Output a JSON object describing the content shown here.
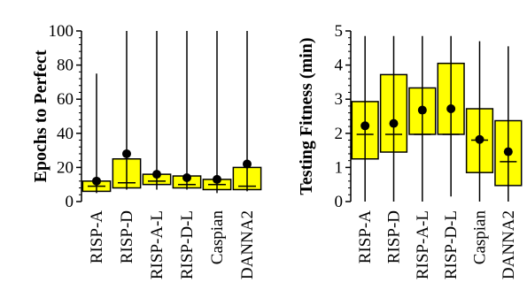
{
  "chart_data": [
    {
      "type": "box",
      "ylabel": "Epochs to Perfect",
      "ylim": [
        0,
        100
      ],
      "yticks": [
        0,
        20,
        40,
        60,
        80,
        100
      ],
      "categories": [
        "RISP-A",
        "RISP-D",
        "RISP-A-L",
        "RISP-D-L",
        "Caspian",
        "DANNA2"
      ],
      "boxes": [
        {
          "min": 5,
          "q1": 6,
          "median": 9,
          "q3": 12,
          "max": 75,
          "mean": 12
        },
        {
          "min": 7,
          "q1": 8,
          "median": 11,
          "q3": 25,
          "max": 100,
          "mean": 28
        },
        {
          "min": 7,
          "q1": 10,
          "median": 12,
          "q3": 16,
          "max": 100,
          "mean": 16
        },
        {
          "min": 7,
          "q1": 8,
          "median": 10,
          "q3": 15,
          "max": 100,
          "mean": 14
        },
        {
          "min": 5,
          "q1": 7,
          "median": 10,
          "q3": 13,
          "max": 100,
          "mean": 13
        },
        {
          "min": 6,
          "q1": 7,
          "median": 9,
          "q3": 20,
          "max": 100,
          "mean": 22
        }
      ]
    },
    {
      "type": "box",
      "ylabel": "Testing Fitness (min)",
      "ylim": [
        0,
        5
      ],
      "yticks": [
        0,
        1,
        2,
        3,
        4,
        5
      ],
      "categories": [
        "RISP-A",
        "RISP-D",
        "RISP-A-L",
        "RISP-D-L",
        "Caspian",
        "DANNA2"
      ],
      "boxes": [
        {
          "min": 0.0,
          "q1": 1.25,
          "median": 1.97,
          "q3": 2.93,
          "max": 4.85,
          "mean": 2.22
        },
        {
          "min": 0.0,
          "q1": 1.45,
          "median": 1.97,
          "q3": 3.72,
          "max": 4.85,
          "mean": 2.29
        },
        {
          "min": 0.0,
          "q1": 1.97,
          "median": 1.97,
          "q3": 3.33,
          "max": 4.85,
          "mean": 2.68
        },
        {
          "min": 0.15,
          "q1": 1.97,
          "median": 1.97,
          "q3": 4.05,
          "max": 4.85,
          "mean": 2.72
        },
        {
          "min": 0.0,
          "q1": 0.85,
          "median": 1.8,
          "q3": 2.72,
          "max": 4.7,
          "mean": 1.82
        },
        {
          "min": 0.0,
          "q1": 0.47,
          "median": 1.17,
          "q3": 2.37,
          "max": 4.55,
          "mean": 1.46
        }
      ]
    }
  ],
  "colors": {
    "box_fill": "#ffff00",
    "stroke": "#000000"
  }
}
